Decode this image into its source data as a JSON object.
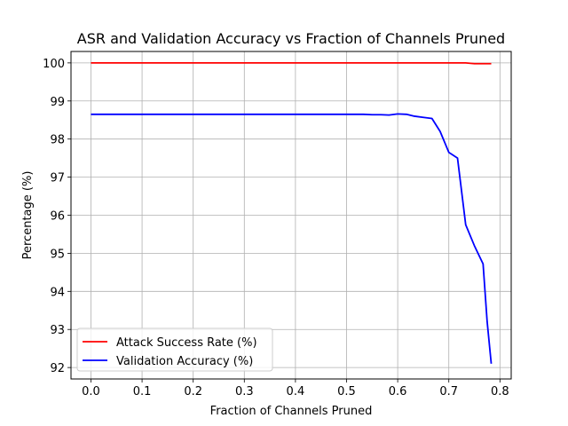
{
  "chart_data": {
    "type": "line",
    "title": "ASR and Validation Accuracy vs Fraction of Channels Pruned",
    "xlabel": "Fraction of Channels Pruned",
    "ylabel": "Percentage (%)",
    "xlim": [
      -0.039,
      0.822
    ],
    "ylim": [
      91.7,
      100.3
    ],
    "xticks": [
      0.0,
      0.1,
      0.2,
      0.3,
      0.4,
      0.5,
      0.6,
      0.7,
      0.8
    ],
    "xtick_labels": [
      "0.0",
      "0.1",
      "0.2",
      "0.3",
      "0.4",
      "0.5",
      "0.6",
      "0.7",
      "0.8"
    ],
    "yticks": [
      92,
      93,
      94,
      95,
      96,
      97,
      98,
      99,
      100
    ],
    "ytick_labels": [
      "92",
      "93",
      "94",
      "95",
      "96",
      "97",
      "98",
      "99",
      "100"
    ],
    "grid": true,
    "legend_position": "lower-left",
    "series": [
      {
        "name": "Attack Success Rate (%)",
        "color": "#ff0000",
        "x": [
          0.0,
          0.1,
          0.2,
          0.3,
          0.4,
          0.5,
          0.6,
          0.7,
          0.733,
          0.75,
          0.767,
          0.783
        ],
        "y": [
          100.0,
          100.0,
          100.0,
          100.0,
          100.0,
          100.0,
          100.0,
          100.0,
          100.0,
          99.98,
          99.98,
          99.98
        ]
      },
      {
        "name": "Validation Accuracy (%)",
        "color": "#0000ff",
        "x": [
          0.0,
          0.1,
          0.2,
          0.3,
          0.4,
          0.5,
          0.533,
          0.55,
          0.567,
          0.583,
          0.6,
          0.617,
          0.633,
          0.65,
          0.667,
          0.683,
          0.7,
          0.717,
          0.733,
          0.75,
          0.767,
          0.775,
          0.783
        ],
        "y": [
          98.65,
          98.65,
          98.65,
          98.65,
          98.65,
          98.65,
          98.65,
          98.64,
          98.64,
          98.63,
          98.66,
          98.65,
          98.6,
          98.57,
          98.54,
          98.2,
          97.65,
          97.5,
          95.75,
          95.2,
          94.72,
          93.2,
          92.1
        ]
      }
    ]
  }
}
